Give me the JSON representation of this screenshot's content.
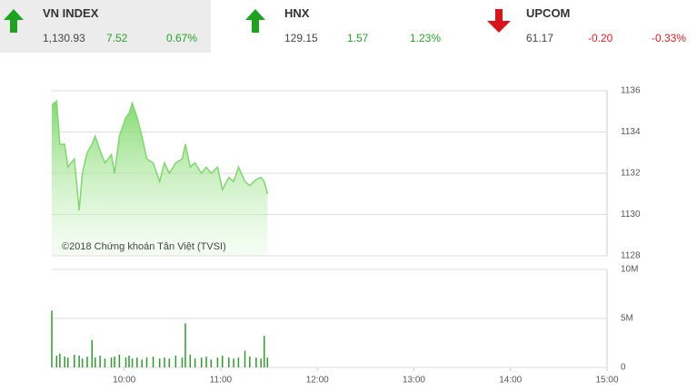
{
  "indices": [
    {
      "name": "VN INDEX",
      "value": "1,130.93",
      "change": "7.52",
      "percent": "0.67%"
    },
    {
      "name": "HNX",
      "value": "129.15",
      "change": "1.57",
      "percent": "1.23%"
    },
    {
      "name": "UPCOM",
      "value": "61.17",
      "change": "-0.20",
      "percent": "-0.33%"
    }
  ],
  "chart_data": [
    {
      "type": "area",
      "annotation": "©2018 Chứng khoán Tân Việt (TVSI)",
      "x": [
        "09:15",
        "09:18",
        "09:20",
        "09:23",
        "09:25",
        "09:29",
        "09:32",
        "09:34",
        "09:37",
        "09:40",
        "09:42",
        "09:45",
        "09:48",
        "09:52",
        "09:54",
        "09:57",
        "10:01",
        "10:03",
        "10:05",
        "10:08",
        "10:11",
        "10:14",
        "10:18",
        "10:22",
        "10:25",
        "10:28",
        "10:32",
        "10:36",
        "10:38",
        "10:41",
        "10:44",
        "10:48",
        "10:51",
        "10:54",
        "10:58",
        "11:01",
        "11:05",
        "11:08",
        "11:11",
        "11:15",
        "11:18",
        "11:22",
        "11:25",
        "11:27",
        "11:29"
      ],
      "values": [
        1135.3,
        1135.5,
        1133.4,
        1133.4,
        1132.3,
        1132.7,
        1130.2,
        1132.0,
        1133.0,
        1133.4,
        1133.8,
        1133.1,
        1132.5,
        1132.9,
        1132.0,
        1133.8,
        1134.7,
        1134.9,
        1135.4,
        1134.7,
        1133.8,
        1132.7,
        1132.5,
        1131.6,
        1132.5,
        1132.0,
        1132.5,
        1132.7,
        1133.4,
        1132.3,
        1132.5,
        1132.0,
        1132.3,
        1132.0,
        1132.3,
        1131.2,
        1131.8,
        1131.6,
        1132.3,
        1131.6,
        1131.4,
        1131.7,
        1131.8,
        1131.6,
        1131.0
      ],
      "color": "#7ed86b",
      "xlim": [
        "09:15",
        "15:00"
      ],
      "ylim": [
        1128,
        1136
      ],
      "yticks": [
        1128,
        1130,
        1132,
        1134,
        1136
      ],
      "grid": true
    },
    {
      "type": "bar",
      "x": [
        "09:15",
        "09:18",
        "09:20",
        "09:23",
        "09:25",
        "09:29",
        "09:32",
        "09:34",
        "09:37",
        "09:40",
        "09:42",
        "09:45",
        "09:48",
        "09:52",
        "09:54",
        "09:57",
        "10:01",
        "10:03",
        "10:05",
        "10:08",
        "10:11",
        "10:14",
        "10:18",
        "10:22",
        "10:25",
        "10:28",
        "10:32",
        "10:36",
        "10:38",
        "10:41",
        "10:44",
        "10:48",
        "10:51",
        "10:54",
        "10:58",
        "11:01",
        "11:05",
        "11:08",
        "11:11",
        "11:15",
        "11:18",
        "11:22",
        "11:25",
        "11:27",
        "11:29"
      ],
      "values": [
        5.8,
        1.2,
        1.4,
        1.1,
        1.0,
        1.3,
        1.2,
        0.9,
        1.1,
        2.8,
        1.0,
        1.2,
        0.9,
        1.0,
        1.1,
        1.3,
        1.0,
        1.2,
        0.9,
        1.0,
        0.8,
        1.0,
        1.1,
        0.9,
        1.0,
        0.9,
        1.2,
        1.0,
        4.5,
        1.3,
        0.9,
        1.0,
        1.1,
        0.8,
        1.0,
        1.2,
        1.0,
        0.9,
        1.0,
        1.7,
        1.1,
        1.0,
        0.9,
        3.2,
        1.0
      ],
      "color": "#2e9a2e",
      "xlim": [
        "09:15",
        "15:00"
      ],
      "xticks": [
        "10:00",
        "11:00",
        "12:00",
        "13:00",
        "14:00",
        "15:00"
      ],
      "ylim": [
        0,
        10
      ],
      "yticks": [
        {
          "value": 0,
          "label": "0"
        },
        {
          "value": 5,
          "label": "5M"
        },
        {
          "value": 10,
          "label": "10M"
        }
      ],
      "grid": true
    }
  ]
}
